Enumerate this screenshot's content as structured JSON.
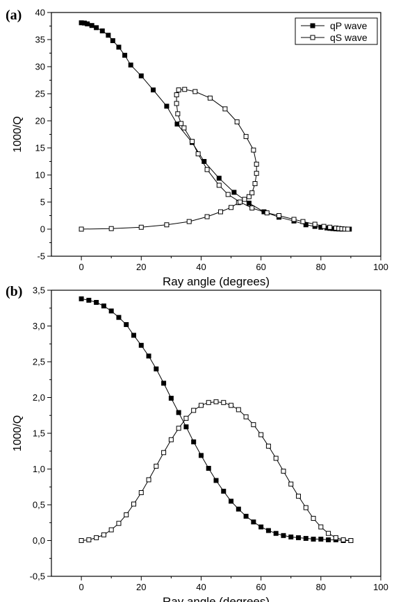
{
  "chart_data": [
    {
      "type": "line",
      "panel_label": "(a)",
      "xlabel": "Ray angle (degrees)",
      "ylabel": "1000/Q",
      "xlim": [
        -10,
        100
      ],
      "ylim": [
        -5,
        40
      ],
      "xticks": [
        0,
        20,
        40,
        60,
        80,
        100
      ],
      "xtick_labels": [
        "0",
        "20",
        "40",
        "60",
        "80",
        "100"
      ],
      "yticks": [
        -5,
        0,
        5,
        10,
        15,
        20,
        25,
        30,
        35,
        40
      ],
      "ytick_labels": [
        "-5",
        "0",
        "5",
        "10",
        "15",
        "20",
        "25",
        "30",
        "35",
        "40"
      ],
      "legend": "top-right",
      "series": [
        {
          "name": "qP wave",
          "marker": "filled-square",
          "points": [
            [
              0,
              38.1
            ],
            [
              1,
              38.05
            ],
            [
              2,
              37.9
            ],
            [
              3.5,
              37.6
            ],
            [
              5,
              37.2
            ],
            [
              7,
              36.6
            ],
            [
              9,
              35.8
            ],
            [
              10.5,
              34.8
            ],
            [
              12.5,
              33.6
            ],
            [
              14.5,
              32.1
            ],
            [
              16.5,
              30.3
            ],
            [
              20,
              28.3
            ],
            [
              24,
              25.7
            ],
            [
              28.5,
              22.7
            ],
            [
              32,
              19.4
            ],
            [
              37,
              16.0
            ],
            [
              41,
              12.5
            ],
            [
              46,
              9.4
            ],
            [
              51,
              6.8
            ],
            [
              56,
              4.8
            ],
            [
              61,
              3.2
            ],
            [
              66,
              2.2
            ],
            [
              71,
              1.5
            ],
            [
              75,
              0.8
            ],
            [
              78,
              0.5
            ],
            [
              80,
              0.35
            ],
            [
              82,
              0.22
            ],
            [
              83,
              0.15
            ],
            [
              84,
              0.1
            ],
            [
              85,
              0.05
            ],
            [
              86,
              0.03
            ],
            [
              87,
              0.01
            ],
            [
              88,
              0.0
            ],
            [
              89,
              0.0
            ],
            [
              89.5,
              0.0
            ]
          ]
        },
        {
          "name": "qS wave",
          "marker": "open-square",
          "points": [
            [
              0,
              0.0
            ],
            [
              10,
              0.1
            ],
            [
              20,
              0.35
            ],
            [
              28.5,
              0.8
            ],
            [
              36,
              1.4
            ],
            [
              42,
              2.3
            ],
            [
              46.5,
              3.2
            ],
            [
              50,
              4.0
            ],
            [
              52.5,
              4.9
            ],
            [
              54.5,
              5.5
            ],
            [
              56,
              6.0
            ],
            [
              57,
              6.7
            ],
            [
              58,
              8.4
            ],
            [
              58.5,
              10.3
            ],
            [
              58.5,
              12.0
            ],
            [
              57.5,
              14.6
            ],
            [
              55,
              17.1
            ],
            [
              52,
              19.8
            ],
            [
              48,
              22.2
            ],
            [
              43,
              24.2
            ],
            [
              38,
              25.4
            ],
            [
              34.5,
              25.8
            ],
            [
              32.5,
              25.7
            ],
            [
              31.8,
              24.8
            ],
            [
              31.8,
              23.2
            ],
            [
              32.2,
              21.3
            ],
            [
              33.3,
              19.5
            ],
            [
              34.3,
              18.7
            ],
            [
              37,
              16.2
            ],
            [
              39,
              13.9
            ],
            [
              42,
              11.0
            ],
            [
              46,
              8.1
            ],
            [
              49,
              6.4
            ],
            [
              53,
              5.0
            ],
            [
              57,
              3.9
            ],
            [
              62,
              3.0
            ],
            [
              66,
              2.5
            ],
            [
              71,
              1.8
            ],
            [
              74,
              1.4
            ],
            [
              78,
              0.9
            ],
            [
              81,
              0.5
            ],
            [
              83,
              0.35
            ],
            [
              85,
              0.2
            ],
            [
              86,
              0.12
            ],
            [
              87,
              0.06
            ],
            [
              88,
              0.02
            ],
            [
              89,
              0.0
            ]
          ]
        }
      ]
    },
    {
      "type": "line",
      "panel_label": "(b)",
      "xlabel": "Ray angle (degrees)",
      "ylabel": "1000/Q",
      "xlim": [
        -10,
        100
      ],
      "ylim": [
        -0.5,
        3.5
      ],
      "xticks": [
        0,
        20,
        40,
        60,
        80,
        100
      ],
      "xtick_labels": [
        "0",
        "20",
        "40",
        "60",
        "80",
        "100"
      ],
      "yticks": [
        -0.5,
        0,
        0.5,
        1,
        1.5,
        2,
        2.5,
        3,
        3.5
      ],
      "ytick_labels": [
        "-0,5",
        "0,0",
        "0,5",
        "1,0",
        "1,5",
        "2,0",
        "2,5",
        "3,0",
        "3,5"
      ],
      "series": [
        {
          "marker": "filled-square",
          "points": [
            [
              0,
              3.38
            ],
            [
              2.5,
              3.36
            ],
            [
              5,
              3.33
            ],
            [
              7.5,
              3.28
            ],
            [
              10,
              3.21
            ],
            [
              12.5,
              3.12
            ],
            [
              15,
              3.02
            ],
            [
              17.5,
              2.87
            ],
            [
              20,
              2.73
            ],
            [
              22.5,
              2.58
            ],
            [
              25,
              2.4
            ],
            [
              27.5,
              2.2
            ],
            [
              30,
              1.99
            ],
            [
              32.5,
              1.79
            ],
            [
              35,
              1.59
            ],
            [
              37.5,
              1.38
            ],
            [
              40,
              1.19
            ],
            [
              42.5,
              1.01
            ],
            [
              45,
              0.84
            ],
            [
              47.5,
              0.69
            ],
            [
              50,
              0.55
            ],
            [
              52.5,
              0.44
            ],
            [
              55,
              0.34
            ],
            [
              57.5,
              0.26
            ],
            [
              60,
              0.19
            ],
            [
              62.5,
              0.14
            ],
            [
              65,
              0.1
            ],
            [
              67.5,
              0.07
            ],
            [
              70,
              0.05
            ],
            [
              72.5,
              0.04
            ],
            [
              75,
              0.03
            ],
            [
              77.5,
              0.02
            ],
            [
              80,
              0.02
            ],
            [
              82.5,
              0.01
            ],
            [
              85,
              0.01
            ],
            [
              87.5,
              0.0
            ],
            [
              90,
              0.0
            ]
          ]
        },
        {
          "marker": "open-square",
          "points": [
            [
              0,
              0.0
            ],
            [
              2.5,
              0.01
            ],
            [
              5,
              0.04
            ],
            [
              7.5,
              0.08
            ],
            [
              10,
              0.15
            ],
            [
              12.5,
              0.24
            ],
            [
              15,
              0.36
            ],
            [
              17.5,
              0.51
            ],
            [
              20,
              0.67
            ],
            [
              22.5,
              0.85
            ],
            [
              25,
              1.04
            ],
            [
              27.5,
              1.23
            ],
            [
              30,
              1.41
            ],
            [
              32.5,
              1.57
            ],
            [
              35,
              1.71
            ],
            [
              37.5,
              1.82
            ],
            [
              40,
              1.89
            ],
            [
              42.5,
              1.93
            ],
            [
              45,
              1.94
            ],
            [
              47.5,
              1.93
            ],
            [
              50,
              1.89
            ],
            [
              52.5,
              1.83
            ],
            [
              55,
              1.73
            ],
            [
              57.5,
              1.62
            ],
            [
              60,
              1.48
            ],
            [
              62.5,
              1.32
            ],
            [
              65,
              1.15
            ],
            [
              67.5,
              0.97
            ],
            [
              70,
              0.79
            ],
            [
              72.5,
              0.62
            ],
            [
              75,
              0.46
            ],
            [
              77.5,
              0.31
            ],
            [
              80,
              0.19
            ],
            [
              82.5,
              0.1
            ],
            [
              85,
              0.04
            ],
            [
              87.5,
              0.01
            ],
            [
              90,
              0.0
            ]
          ]
        }
      ]
    }
  ]
}
